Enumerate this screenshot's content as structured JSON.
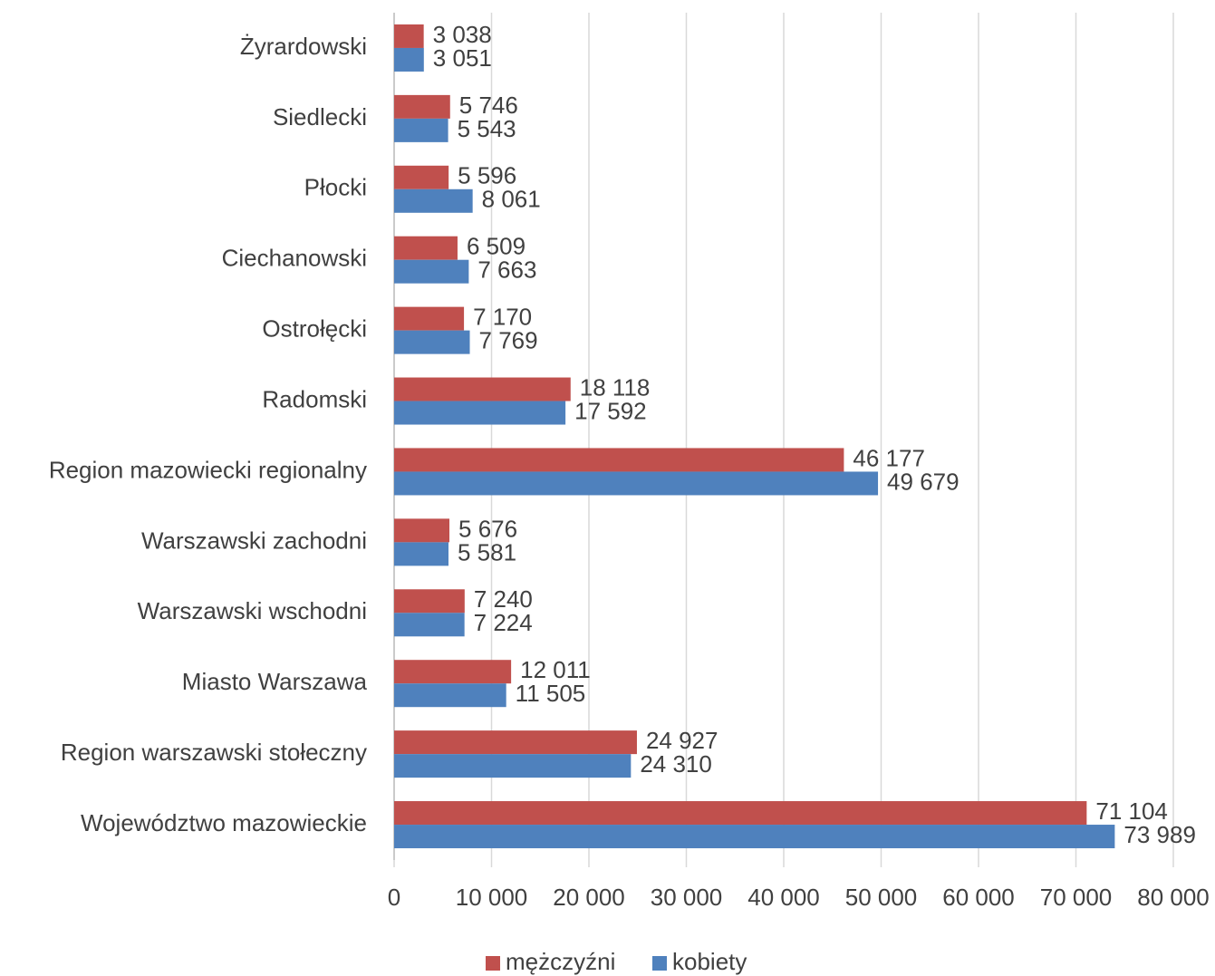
{
  "chart_data": {
    "type": "bar",
    "orientation": "horizontal",
    "categories": [
      "Żyrardowski",
      "Siedlecki",
      "Płocki",
      "Ciechanowski",
      "Ostrołęcki",
      "Radomski",
      "Region mazowiecki regionalny",
      "Warszawski zachodni",
      "Warszawski wschodni",
      "Miasto Warszawa",
      "Region warszawski stołeczny",
      "Województwo mazowieckie"
    ],
    "series": [
      {
        "name": "mężczyźni",
        "color": "#c0504d",
        "values": [
          3038,
          5746,
          5596,
          6509,
          7170,
          18118,
          46177,
          5676,
          7240,
          12011,
          24927,
          71104
        ],
        "value_labels": [
          "3 038",
          "5 746",
          "5 596",
          "6 509",
          "7 170",
          "18 118",
          "46 177",
          "5 676",
          "7 240",
          "12 011",
          "24 927",
          "71 104"
        ]
      },
      {
        "name": "kobiety",
        "color": "#4f81bd",
        "values": [
          3051,
          5543,
          8061,
          7663,
          7769,
          17592,
          49679,
          5581,
          7224,
          11505,
          24310,
          73989
        ],
        "value_labels": [
          "3 051",
          "5 543",
          "8 061",
          "7 663",
          "7 769",
          "17 592",
          "49 679",
          "5 581",
          "7 224",
          "11 505",
          "24 310",
          "73 989"
        ]
      }
    ],
    "xlim": [
      0,
      80000
    ],
    "xticks": [
      0,
      {
        "value": 10000,
        "label": "10 000"
      },
      {
        "value": 20000,
        "label": "20 000"
      },
      {
        "value": 30000,
        "label": "30 000"
      },
      {
        "value": 40000,
        "label": "40 000"
      },
      {
        "value": 50000,
        "label": "50 000"
      },
      {
        "value": 60000,
        "label": "60 000"
      },
      {
        "value": 70000,
        "label": "70 000"
      },
      {
        "value": 80000,
        "label": "80 000"
      }
    ],
    "grid": true,
    "legend": "bottom"
  }
}
